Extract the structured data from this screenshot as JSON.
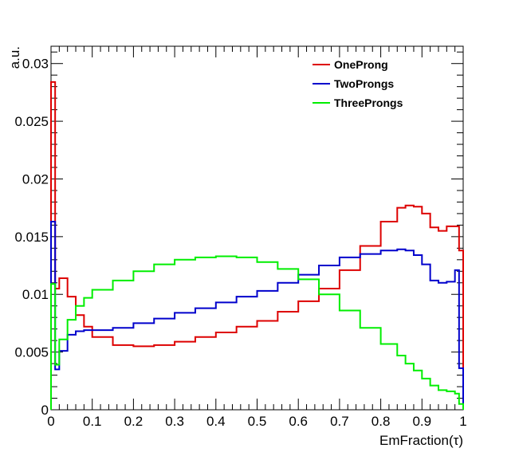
{
  "chart_data": {
    "type": "line",
    "style": "step-histogram",
    "xlabel": "EmFraction(τ)",
    "ylabel": "a.u.",
    "xlim": [
      0,
      1
    ],
    "ylim": [
      0,
      0.0315
    ],
    "x_ticks": [
      0,
      0.1,
      0.2,
      0.3,
      0.4,
      0.5,
      0.6,
      0.7,
      0.8,
      0.9,
      1
    ],
    "x_tick_labels": [
      "0",
      "0.1",
      "0.2",
      "0.3",
      "0.4",
      "0.5",
      "0.6",
      "0.7",
      "0.8",
      "0.9",
      "1"
    ],
    "y_ticks": [
      0,
      0.005,
      0.01,
      0.015,
      0.02,
      0.025,
      0.03
    ],
    "y_tick_labels": [
      "0",
      "0.005",
      "0.01",
      "0.015",
      "0.02",
      "0.025",
      "0.03"
    ],
    "grid": false,
    "legend_position": "top-right",
    "bin_edges": [
      0,
      0.01,
      0.02,
      0.04,
      0.06,
      0.08,
      0.1,
      0.15,
      0.2,
      0.25,
      0.3,
      0.35,
      0.4,
      0.45,
      0.5,
      0.55,
      0.6,
      0.65,
      0.7,
      0.75,
      0.8,
      0.84,
      0.86,
      0.88,
      0.9,
      0.92,
      0.94,
      0.96,
      0.98,
      0.99,
      1.0
    ],
    "series": [
      {
        "name": "OneProng",
        "color": "#dd0000",
        "values": [
          0.0284,
          0.0105,
          0.0114,
          0.0098,
          0.0082,
          0.0072,
          0.0063,
          0.0056,
          0.0055,
          0.0056,
          0.0059,
          0.0063,
          0.0067,
          0.0072,
          0.0077,
          0.0085,
          0.0094,
          0.0105,
          0.0121,
          0.0142,
          0.0163,
          0.0175,
          0.0177,
          0.0176,
          0.017,
          0.0158,
          0.0155,
          0.0159,
          0.0159,
          0.0138
        ]
      },
      {
        "name": "TwoProngs",
        "color": "#0000cc",
        "values": [
          0.0163,
          0.0035,
          0.0051,
          0.0065,
          0.0068,
          0.0069,
          0.0069,
          0.0071,
          0.0075,
          0.0079,
          0.0084,
          0.0088,
          0.0093,
          0.0098,
          0.0103,
          0.011,
          0.0117,
          0.0125,
          0.0132,
          0.0135,
          0.0138,
          0.0139,
          0.0138,
          0.0134,
          0.0126,
          0.0112,
          0.011,
          0.0111,
          0.0121,
          0.0036
        ]
      },
      {
        "name": "ThreeProngs",
        "color": "#00ee00",
        "values": [
          0.0109,
          0.0039,
          0.0061,
          0.0078,
          0.009,
          0.0097,
          0.0104,
          0.0112,
          0.012,
          0.0126,
          0.013,
          0.0132,
          0.0133,
          0.0132,
          0.0128,
          0.0122,
          0.0113,
          0.01,
          0.0086,
          0.0071,
          0.0057,
          0.0047,
          0.004,
          0.0034,
          0.0027,
          0.0021,
          0.0017,
          0.0016,
          0.0014,
          0.0005
        ]
      }
    ]
  }
}
